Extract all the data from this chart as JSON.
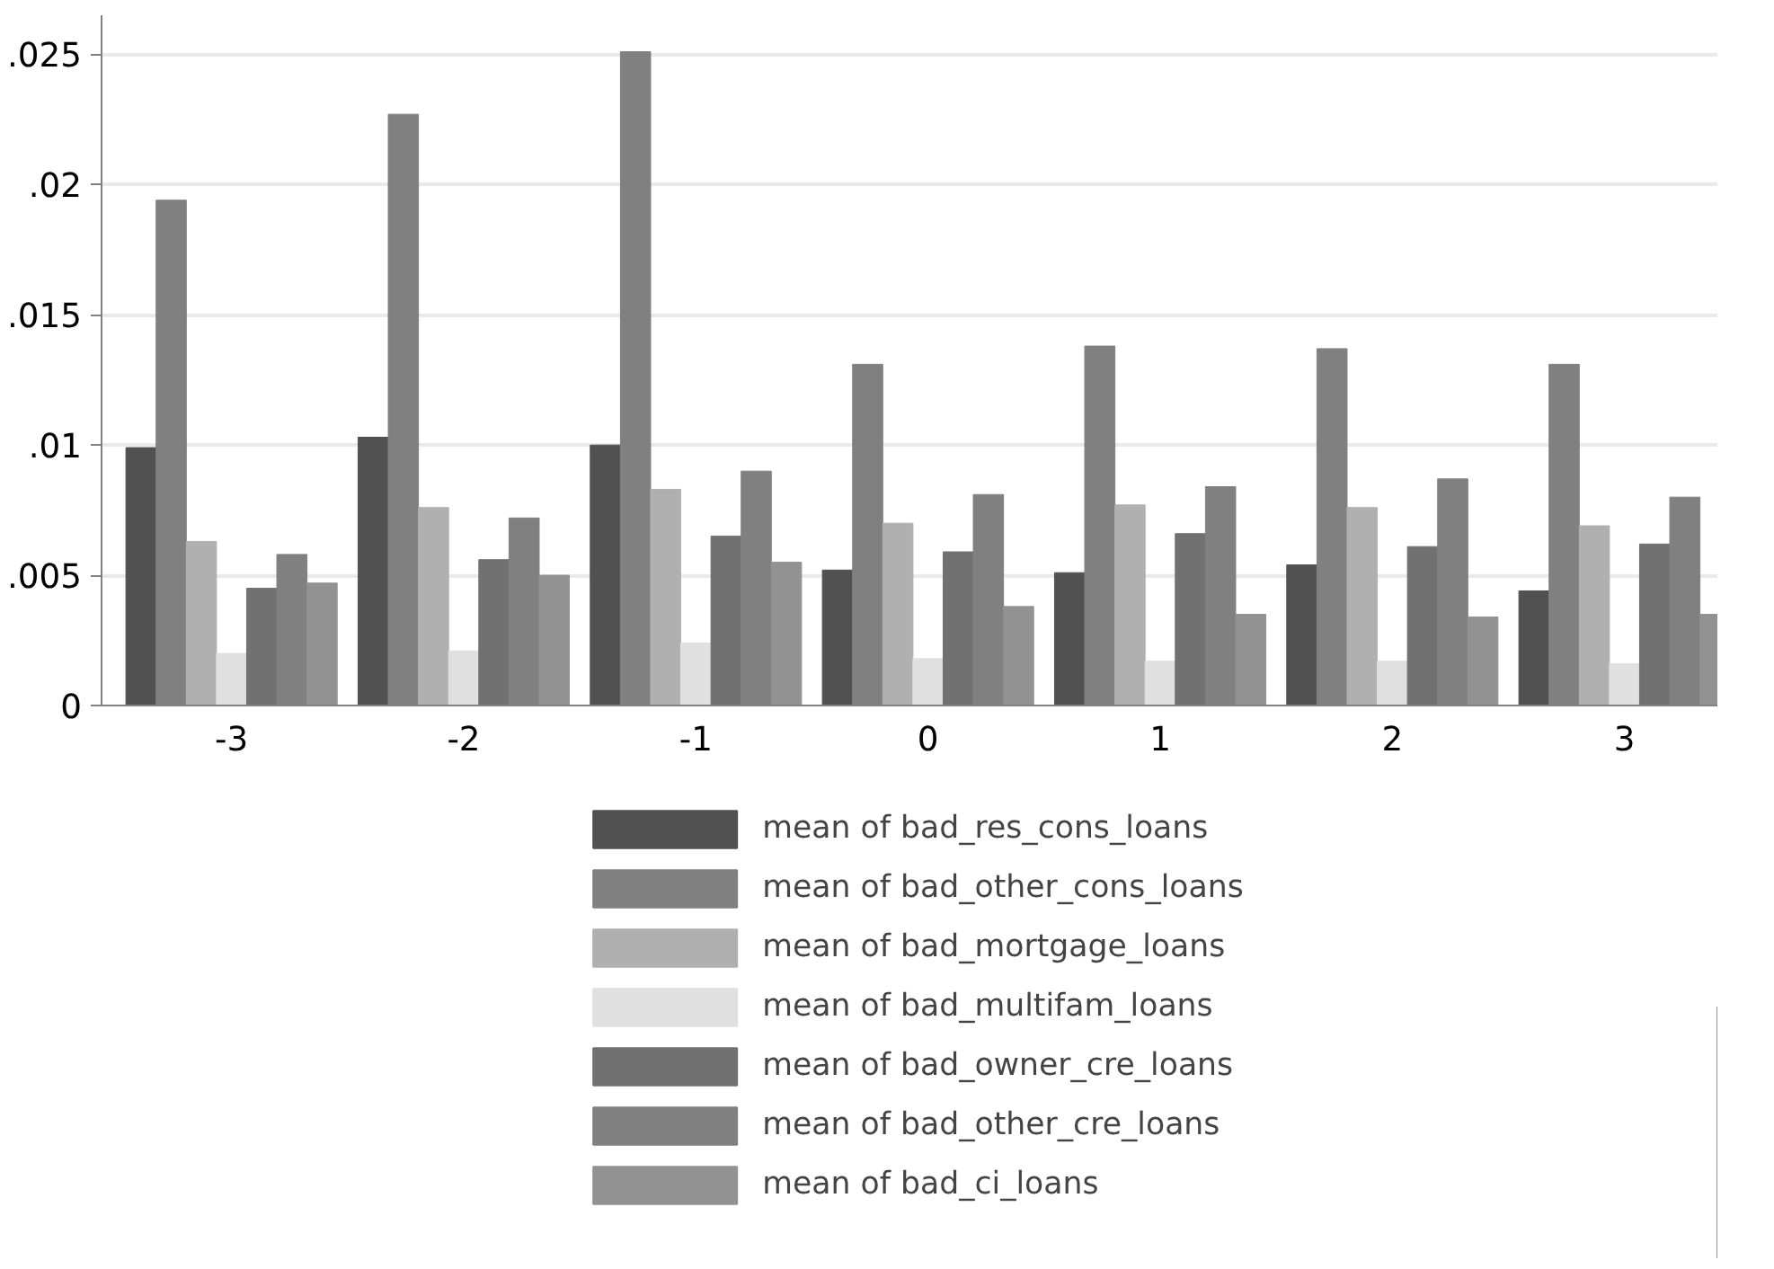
{
  "chart_data": {
    "type": "bar",
    "categories": [
      "-3",
      "-2",
      "-1",
      "0",
      "1",
      "2",
      "3"
    ],
    "series": [
      {
        "name": "mean of bad_res_cons_loans",
        "color": "#515151",
        "values": [
          0.0099,
          0.0103,
          0.01,
          0.0052,
          0.0051,
          0.0054,
          0.0044
        ]
      },
      {
        "name": "mean of bad_other_cons_loans",
        "color": "#808080",
        "values": [
          0.0194,
          0.0227,
          0.0251,
          0.0131,
          0.0138,
          0.0137,
          0.0131
        ]
      },
      {
        "name": "mean of bad_mortgage_loans",
        "color": "#b0b0b0",
        "values": [
          0.0063,
          0.0076,
          0.0083,
          0.007,
          0.0077,
          0.0076,
          0.0069
        ]
      },
      {
        "name": "mean of bad_multifam_loans",
        "color": "#e0e0e0",
        "values": [
          0.002,
          0.0021,
          0.0024,
          0.0018,
          0.0017,
          0.0017,
          0.0016
        ]
      },
      {
        "name": "mean of bad_owner_cre_loans",
        "color": "#717171",
        "values": [
          0.0045,
          0.0056,
          0.0065,
          0.0059,
          0.0066,
          0.0061,
          0.0062
        ]
      },
      {
        "name": "mean of bad_other_cre_loans",
        "color": "#808080",
        "values": [
          0.0058,
          0.0072,
          0.009,
          0.0081,
          0.0084,
          0.0087,
          0.008
        ]
      },
      {
        "name": "mean of bad_ci_loans",
        "color": "#929292",
        "values": [
          0.0047,
          0.005,
          0.0055,
          0.0038,
          0.0035,
          0.0034,
          0.0035
        ]
      }
    ],
    "ylim": [
      0,
      0.0265
    ],
    "yticks": [
      0,
      {
        "value": 0.005,
        "label": ".005"
      },
      {
        "value": 0.01,
        "label": ".01"
      },
      {
        "value": 0.015,
        "label": ".015"
      },
      {
        "value": 0.02,
        "label": ".02"
      },
      {
        "value": 0.025,
        "label": ".025"
      }
    ],
    "grid": "y",
    "legend": "bottom"
  }
}
